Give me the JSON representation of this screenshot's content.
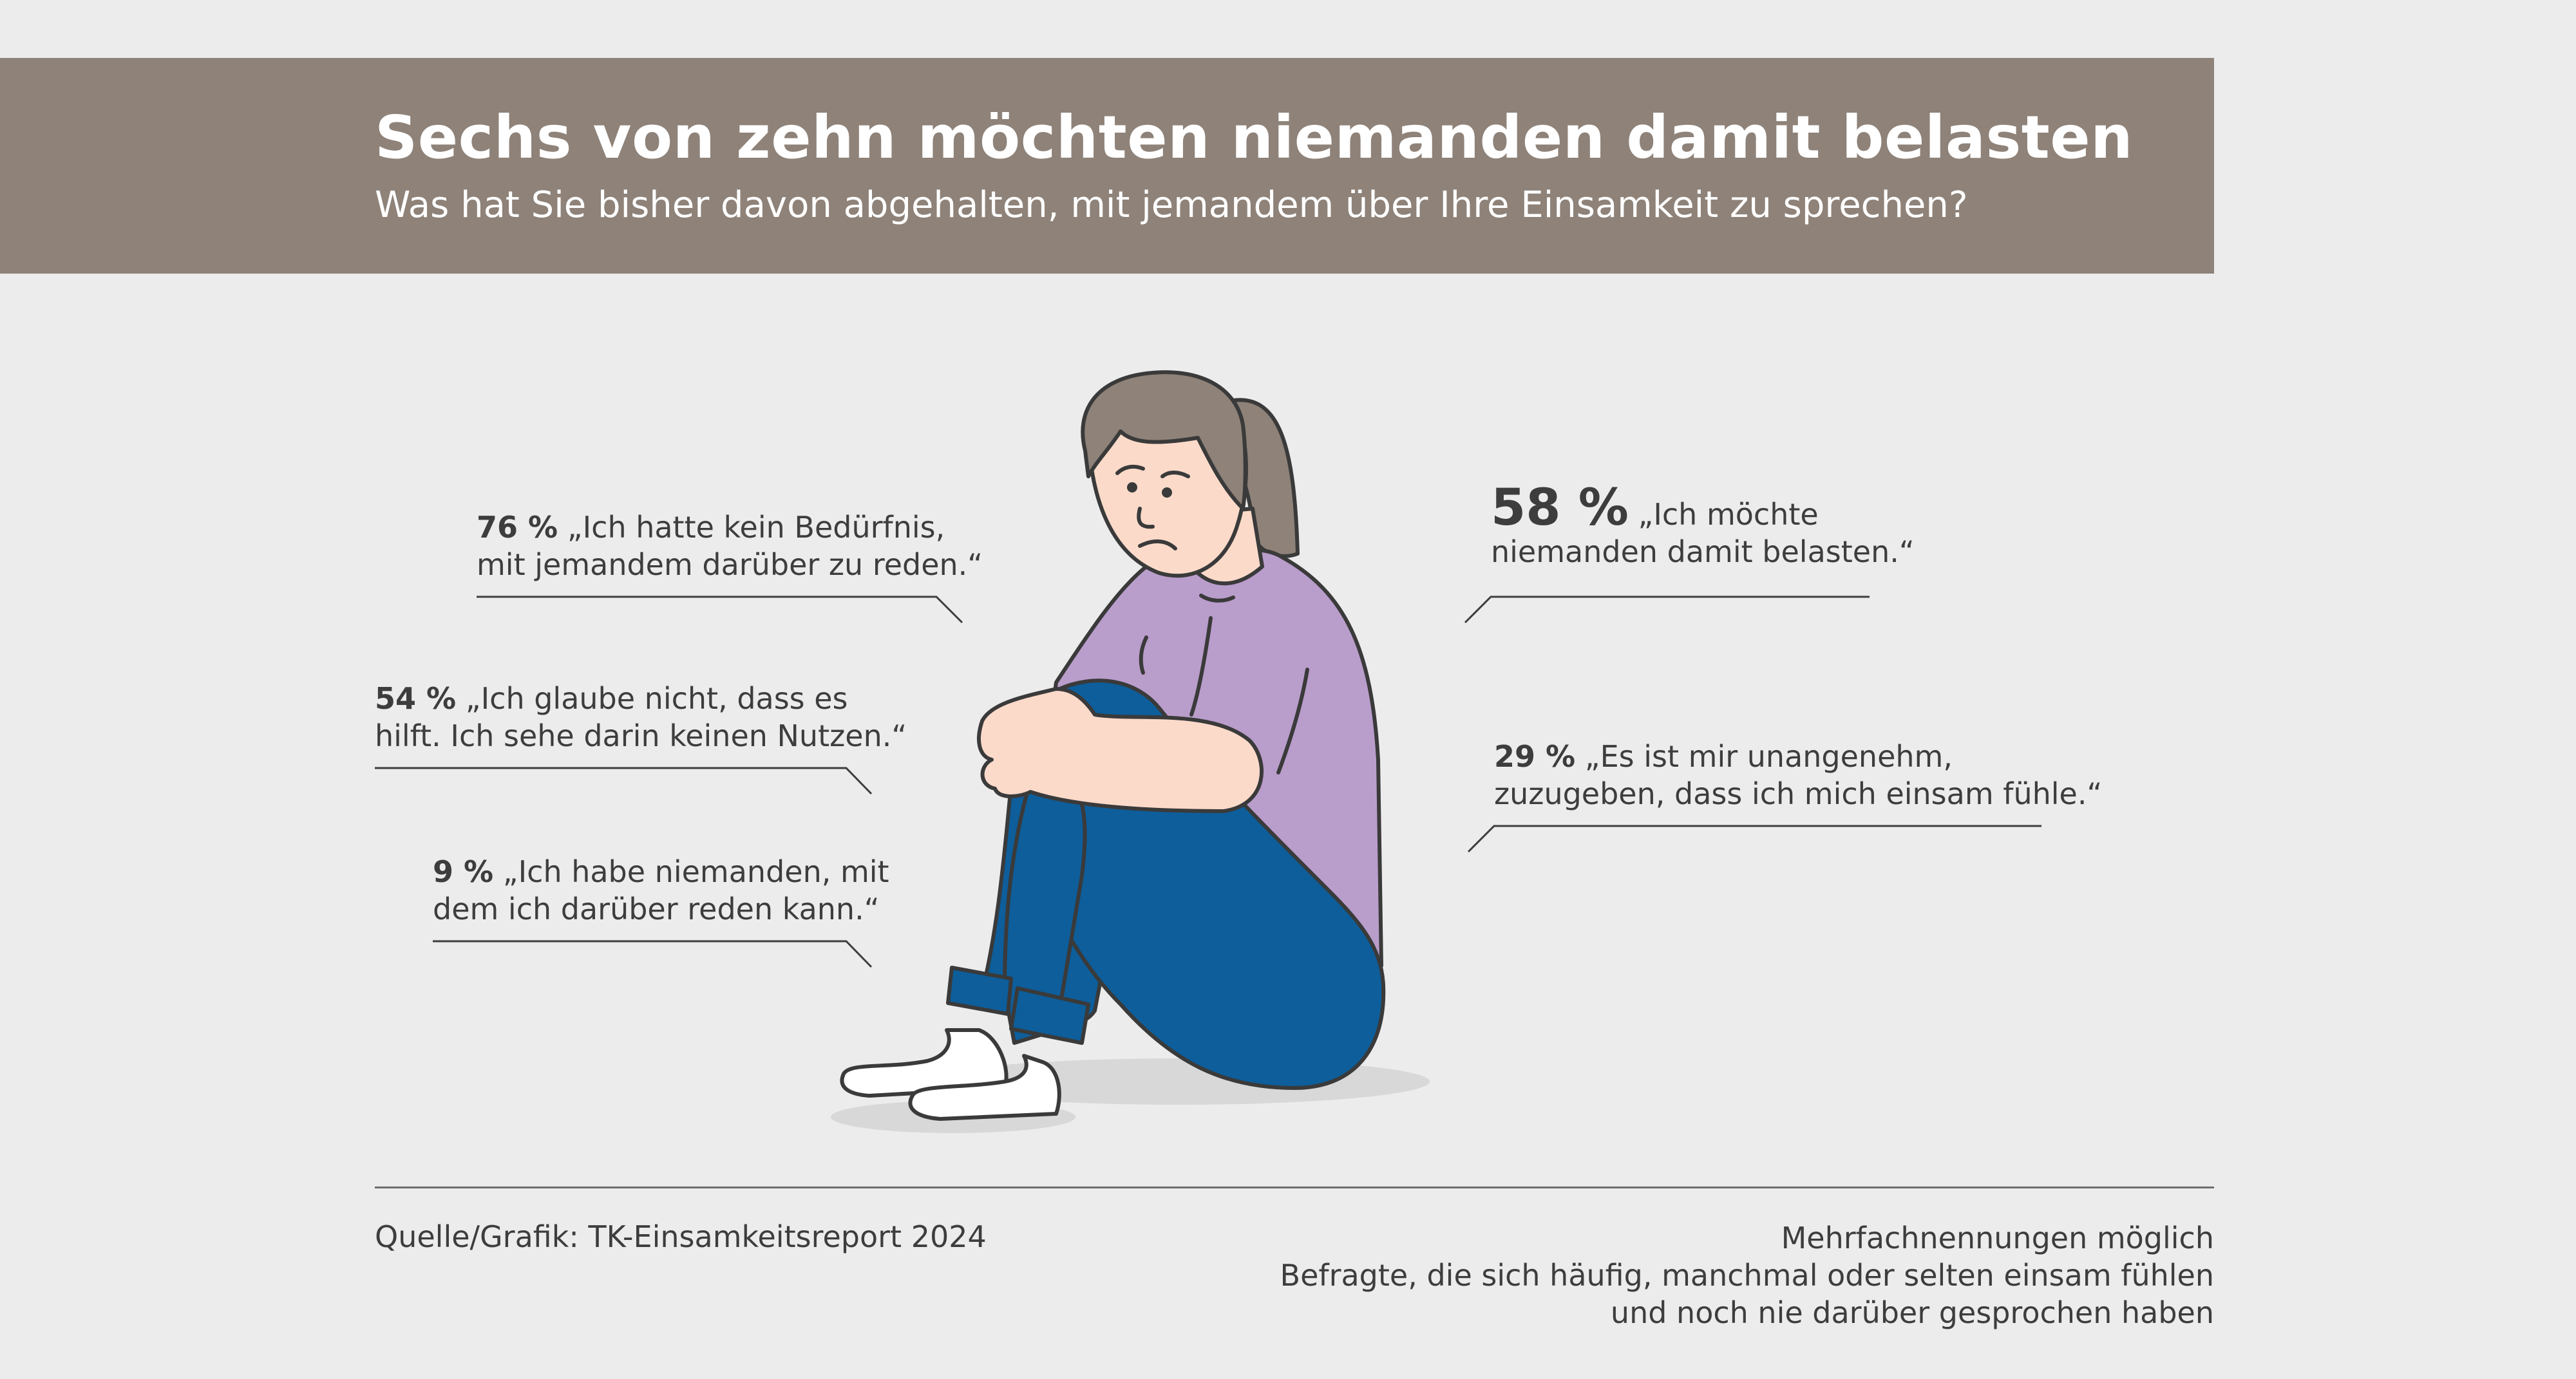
{
  "header": {
    "title": "Sechs von zehn möchten niemanden damit belasten",
    "subtitle": "Was hat Sie bisher davon abgehalten, mit jemandem über Ihre Einsamkeit zu sprechen?"
  },
  "chart_data": {
    "type": "other",
    "unit": "%",
    "items": [
      {
        "pct_label": "76 %",
        "value": 76,
        "quote": [
          "„Ich hatte kein Bedürfnis,",
          "mit jemandem darüber zu reden.“"
        ]
      },
      {
        "pct_label": "54 %",
        "value": 54,
        "quote": [
          "„Ich glaube nicht, dass es",
          "hilft. Ich sehe darin keinen Nutzen.“"
        ]
      },
      {
        "pct_label": "9 %",
        "value": 9,
        "quote": [
          "„Ich habe niemanden, mit",
          "dem ich darüber reden kann.“"
        ]
      },
      {
        "pct_label": "58 %",
        "value": 58,
        "quote": [
          "„Ich möchte",
          "niemanden damit belasten.“"
        ]
      },
      {
        "pct_label": "29 %",
        "value": 29,
        "quote": [
          "„Es ist mir unangenehm,",
          "zuzugeben, dass ich mich einsam fühle.“"
        ]
      }
    ]
  },
  "footer": {
    "source": "Quelle/Grafik: TK-Einsamkeitsreport 2024",
    "notes": [
      "Mehrfachnennungen möglich",
      "Befragte, die sich häufig, manchmal oder selten einsam fühlen",
      "und noch nie darüber gesprochen haben"
    ]
  },
  "colors": {
    "header_band": "#8e8279",
    "background": "#ececec",
    "text": "#3d3d3d",
    "shirt": "#b99dcb",
    "jeans": "#0d5e9b",
    "skin": "#fbdaca",
    "hair": "#8e8279"
  },
  "illustration": "sad-sitting-woman-illustration"
}
